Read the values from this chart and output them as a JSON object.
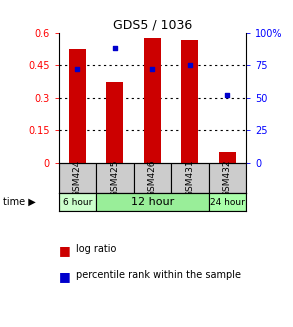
{
  "title": "GDS5 / 1036",
  "samples": [
    "GSM424",
    "GSM425",
    "GSM426",
    "GSM431",
    "GSM432"
  ],
  "log_ratio": [
    0.525,
    0.37,
    0.575,
    0.565,
    0.05
  ],
  "percentile_rank": [
    72,
    88,
    72,
    75,
    52
  ],
  "ylim_left": [
    0,
    0.6
  ],
  "ylim_right": [
    0,
    100
  ],
  "yticks_left": [
    0,
    0.15,
    0.3,
    0.45,
    0.6
  ],
  "yticks_right": [
    0,
    25,
    50,
    75,
    100
  ],
  "ytick_labels_left": [
    "0",
    "0.15",
    "0.3",
    "0.45",
    "0.6"
  ],
  "ytick_labels_right": [
    "0",
    "25",
    "50",
    "75",
    "100%"
  ],
  "bar_color": "#cc0000",
  "dot_color": "#0000cc",
  "bg_color": "#ffffff",
  "sample_box_color": "#cccccc",
  "time_6h_color": "#ccffcc",
  "time_12h_color": "#99ee99",
  "time_24h_color": "#aaffaa",
  "bar_width": 0.45,
  "legend_labels": [
    "log ratio",
    "percentile rank within the sample"
  ],
  "time_groups": [
    [
      0,
      0,
      "6 hour",
      "#ccffcc"
    ],
    [
      1,
      3,
      "12 hour",
      "#99ee99"
    ],
    [
      4,
      4,
      "24 hour",
      "#aaffaa"
    ]
  ]
}
